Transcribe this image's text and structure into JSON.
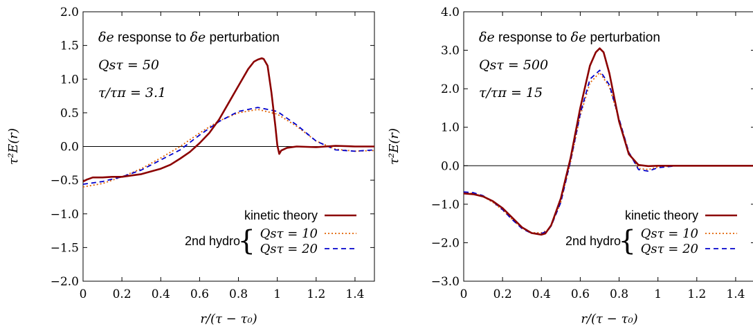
{
  "chart_data": [
    {
      "type": "line",
      "xlabel": "r/(τ − τ₀)",
      "ylabel": "τ²E(r)",
      "xlim": [
        0,
        1.5
      ],
      "ylim": [
        -2.0,
        2.0
      ],
      "x_ticks": [
        0,
        0.2,
        0.4,
        0.6,
        0.8,
        1,
        1.2,
        1.4
      ],
      "x_tick_labels": [
        "0",
        "0.2",
        "0.4",
        "0.6",
        "0.8",
        "1",
        "1.2",
        "1.4"
      ],
      "y_ticks": [
        -2.0,
        -1.5,
        -1.0,
        -0.5,
        0.0,
        0.5,
        1.0,
        1.5,
        2.0
      ],
      "y_tick_labels": [
        "−2.0",
        "−1.5",
        "−1.0",
        "−0.5",
        "0.0",
        "0.5",
        "1.0",
        "1.5",
        "2.0"
      ],
      "annotations": {
        "line1_a": "δe",
        "line1_b": " response to ",
        "line1_c": "δe",
        "line1_d": " perturbation",
        "line2": "Qsτ = 50",
        "line3": "τ/τπ = 3.1"
      },
      "legend": {
        "placement": "bottom-right",
        "entries": [
          "kinetic theory",
          "Qsτ = 10",
          "Qsτ = 20"
        ],
        "group_label": "2nd hydro"
      },
      "series": [
        {
          "name": "kinetic theory",
          "color": "#8b0000",
          "style": "solid",
          "x": [
            0,
            0.02,
            0.05,
            0.1,
            0.15,
            0.2,
            0.25,
            0.3,
            0.35,
            0.4,
            0.45,
            0.5,
            0.55,
            0.6,
            0.65,
            0.7,
            0.75,
            0.8,
            0.85,
            0.88,
            0.9,
            0.92,
            0.93,
            0.95,
            0.97,
            0.99,
            1.0,
            1.01,
            1.02,
            1.05,
            1.1,
            1.2,
            1.3,
            1.4,
            1.5
          ],
          "y": [
            -0.52,
            -0.49,
            -0.46,
            -0.46,
            -0.45,
            -0.45,
            -0.43,
            -0.41,
            -0.37,
            -0.33,
            -0.27,
            -0.18,
            -0.08,
            0.05,
            0.2,
            0.4,
            0.65,
            0.9,
            1.15,
            1.26,
            1.29,
            1.31,
            1.3,
            1.2,
            0.8,
            0.3,
            0.02,
            -0.11,
            -0.06,
            -0.02,
            0.0,
            -0.01,
            0.01,
            0.0,
            0.0
          ]
        },
        {
          "name": "Qsτ = 10",
          "color": "#e06000",
          "style": "dotted",
          "x": [
            0,
            0.1,
            0.2,
            0.3,
            0.4,
            0.5,
            0.6,
            0.7,
            0.8,
            0.9,
            1.0,
            1.1,
            1.2,
            1.3,
            1.4,
            1.5
          ],
          "y": [
            -0.6,
            -0.55,
            -0.45,
            -0.33,
            -0.17,
            0.0,
            0.2,
            0.38,
            0.5,
            0.55,
            0.48,
            0.3,
            0.08,
            -0.04,
            -0.07,
            -0.06
          ]
        },
        {
          "name": "Qsτ = 20",
          "color": "#0000cc",
          "style": "dashed",
          "x": [
            0,
            0.1,
            0.2,
            0.3,
            0.4,
            0.5,
            0.6,
            0.7,
            0.8,
            0.9,
            1.0,
            1.1,
            1.2,
            1.3,
            1.4,
            1.5
          ],
          "y": [
            -0.56,
            -0.52,
            -0.45,
            -0.35,
            -0.2,
            -0.05,
            0.17,
            0.37,
            0.52,
            0.58,
            0.52,
            0.32,
            0.08,
            -0.05,
            -0.07,
            -0.05
          ]
        }
      ]
    },
    {
      "type": "line",
      "xlabel": "r/(τ − τ₀)",
      "ylabel": "τ²E(r)",
      "xlim": [
        0,
        1.5
      ],
      "ylim": [
        -3.0,
        4.0
      ],
      "x_ticks": [
        0,
        0.2,
        0.4,
        0.6,
        0.8,
        1,
        1.2,
        1.4
      ],
      "x_tick_labels": [
        "0",
        "0.2",
        "0.4",
        "0.6",
        "0.8",
        "1",
        "1.2",
        "1.4"
      ],
      "y_ticks": [
        -3.0,
        -2.0,
        -1.0,
        0.0,
        1.0,
        2.0,
        3.0,
        4.0
      ],
      "y_tick_labels": [
        "−3.0",
        "−2.0",
        "−1.0",
        "0.0",
        "1.0",
        "2.0",
        "3.0",
        "4.0"
      ],
      "annotations": {
        "line1_a": "δe",
        "line1_b": " response to ",
        "line1_c": "δe",
        "line1_d": " perturbation",
        "line2": "Qsτ = 500",
        "line3": "τ/τπ = 15"
      },
      "legend": {
        "placement": "bottom-right",
        "entries": [
          "kinetic theory",
          "Qsτ = 10",
          "Qsτ = 20"
        ],
        "group_label": "2nd hydro"
      },
      "series": [
        {
          "name": "kinetic theory",
          "color": "#8b0000",
          "style": "solid",
          "x": [
            0,
            0.05,
            0.1,
            0.15,
            0.2,
            0.25,
            0.3,
            0.35,
            0.4,
            0.42,
            0.45,
            0.5,
            0.55,
            0.6,
            0.65,
            0.68,
            0.7,
            0.72,
            0.75,
            0.8,
            0.85,
            0.9,
            0.95,
            1.0,
            1.1,
            1.2,
            1.3,
            1.4,
            1.5
          ],
          "y": [
            -0.72,
            -0.74,
            -0.8,
            -0.92,
            -1.1,
            -1.35,
            -1.6,
            -1.75,
            -1.79,
            -1.76,
            -1.55,
            -0.85,
            0.2,
            1.5,
            2.6,
            2.95,
            3.05,
            2.95,
            2.4,
            1.15,
            0.3,
            0.02,
            -0.01,
            0.0,
            0.0,
            0.0,
            0.0,
            0.0,
            0.0
          ]
        },
        {
          "name": "Qsτ = 10",
          "color": "#e06000",
          "style": "dotted",
          "x": [
            0,
            0.05,
            0.1,
            0.15,
            0.2,
            0.25,
            0.3,
            0.35,
            0.4,
            0.43,
            0.45,
            0.5,
            0.55,
            0.6,
            0.65,
            0.7,
            0.75,
            0.8,
            0.85,
            0.9,
            0.95,
            1.0,
            1.1,
            1.2,
            1.3,
            1.4,
            1.5
          ],
          "y": [
            -0.7,
            -0.72,
            -0.8,
            -0.95,
            -1.15,
            -1.4,
            -1.62,
            -1.74,
            -1.74,
            -1.68,
            -1.55,
            -0.95,
            0.1,
            1.3,
            2.15,
            2.42,
            2.05,
            1.2,
            0.35,
            -0.07,
            -0.1,
            -0.03,
            0.0,
            0.0,
            0.0,
            0.0,
            0.0
          ]
        },
        {
          "name": "Qsτ = 20",
          "color": "#0000cc",
          "style": "dashed",
          "x": [
            0,
            0.05,
            0.1,
            0.15,
            0.2,
            0.25,
            0.3,
            0.35,
            0.4,
            0.43,
            0.45,
            0.5,
            0.55,
            0.6,
            0.65,
            0.7,
            0.75,
            0.8,
            0.85,
            0.9,
            0.95,
            1.0,
            1.1,
            1.2,
            1.3,
            1.4,
            1.5
          ],
          "y": [
            -0.68,
            -0.7,
            -0.78,
            -0.93,
            -1.14,
            -1.4,
            -1.63,
            -1.76,
            -1.76,
            -1.7,
            -1.57,
            -0.95,
            0.12,
            1.35,
            2.25,
            2.48,
            2.1,
            1.22,
            0.35,
            -0.1,
            -0.14,
            -0.05,
            0.0,
            0.0,
            0.0,
            0.0,
            0.0
          ]
        }
      ]
    }
  ]
}
